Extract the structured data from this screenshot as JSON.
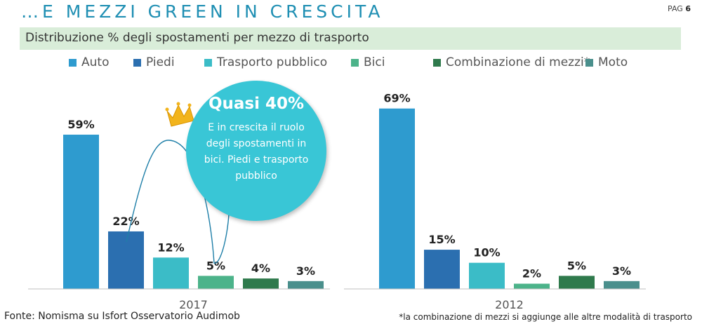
{
  "header": {
    "title": "…E MEZZI GREEN IN CRESCITA",
    "page_label": "PAG",
    "page_number": "6",
    "subtitle": "Distribuzione % degli spostamenti per mezzo di trasporto"
  },
  "callout": {
    "headline": "Quasi 40%",
    "body": "E in crescita il ruolo degli spostamenti in bici. Piedi e trasporto pubblico",
    "icon": "crown-icon"
  },
  "footer": {
    "source": "Fonte: Nomisma su Isfort Osservatorio Audimob",
    "note": "*la combinazione di mezzi si aggiunge alle altre modalità di trasporto"
  },
  "colors": {
    "accent": "#1f8fb3",
    "subtitle_band": "#d9edd9",
    "callout": "#39c6d6",
    "crown": "#f2b41c"
  },
  "chart_data": {
    "type": "bar",
    "categories": [
      "2017",
      "2012"
    ],
    "series": [
      {
        "name": "Auto",
        "color": "#2e9bcf",
        "values": [
          59,
          69
        ],
        "labels": [
          "59%",
          "69%"
        ]
      },
      {
        "name": "Piedi",
        "color": "#2b6fb0",
        "values": [
          22,
          15
        ],
        "labels": [
          "22%",
          "15%"
        ]
      },
      {
        "name": "Trasporto pubblico",
        "color": "#3bbcc7",
        "values": [
          12,
          10
        ],
        "labels": [
          "12%",
          "10%"
        ]
      },
      {
        "name": "Bici",
        "color": "#4cb38a",
        "values": [
          5,
          2
        ],
        "labels": [
          "5%",
          "2%"
        ]
      },
      {
        "name": "Combinazione di mezzi*",
        "color": "#2f7a4c",
        "values": [
          4,
          5
        ],
        "labels": [
          "4%",
          "5%"
        ]
      },
      {
        "name": "Moto",
        "color": "#4a8f8c",
        "values": [
          3,
          3
        ],
        "labels": [
          "3%",
          "3%"
        ]
      }
    ],
    "ylim": [
      0,
      70
    ],
    "grid": false,
    "legend": "top"
  }
}
